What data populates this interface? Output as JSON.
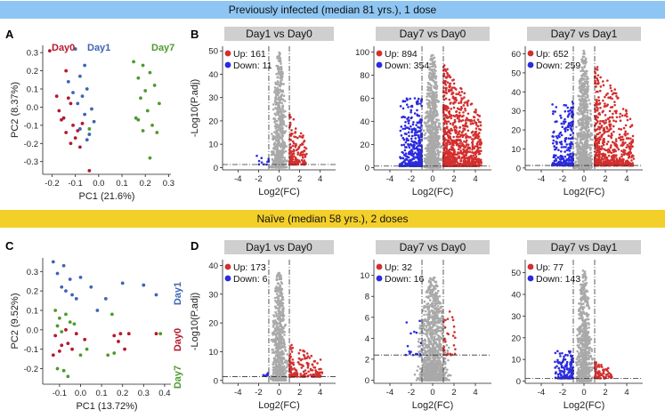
{
  "colors": {
    "day0": "#b5192d",
    "day1": "#3f64b4",
    "day7": "#4e9a2e",
    "up": "#d32f2f",
    "down": "#2a2ae0",
    "ns": "#a9a9a9",
    "header": "#cfcfcf"
  },
  "banners": {
    "top": "Previously infected (median 81 yrs.), 1 dose",
    "bottom": "Naïve (median 58 yrs.), 2 doses"
  },
  "panel_letters": {
    "A": "A",
    "B": "B",
    "C": "C",
    "D": "D"
  },
  "chart_data": [
    {
      "id": "A",
      "type": "scatter",
      "xlabel": "PC1 (21.6%)",
      "ylabel": "PC2 (8.37%)",
      "xlim": [
        -0.24,
        0.31
      ],
      "ylim": [
        -0.37,
        0.34
      ],
      "xticks": [
        -0.2,
        -0.1,
        0.0,
        0.1,
        0.2,
        0.3
      ],
      "xticklabels": [
        "-0.2",
        "-0.1",
        "0.0",
        "0.1",
        "0.2",
        "0.3"
      ],
      "yticks": [
        -0.3,
        -0.2,
        -0.1,
        0.0,
        0.1,
        0.2,
        0.3
      ],
      "yticklabels": [
        "-0.3",
        "-0.2",
        "-0.1",
        "0.0",
        "0.1",
        "0.2",
        "0.3"
      ],
      "group_labels": [
        {
          "text": "Day0",
          "color_key": "day0"
        },
        {
          "text": "Day1",
          "color_key": "day1"
        },
        {
          "text": "Day7",
          "color_key": "day7"
        }
      ],
      "series": [
        {
          "name": "Day0",
          "color_key": "day0",
          "x": [
            -0.21,
            -0.14,
            -0.18,
            -0.13,
            -0.12,
            -0.17,
            -0.15,
            -0.11,
            -0.09,
            -0.1,
            -0.14,
            -0.12,
            -0.08,
            -0.16,
            -0.07,
            -0.04
          ],
          "y": [
            0.31,
            0.2,
            0.06,
            0.05,
            0.02,
            -0.02,
            -0.06,
            -0.1,
            -0.13,
            -0.17,
            -0.14,
            -0.2,
            -0.22,
            -0.07,
            -0.09,
            -0.35
          ]
        },
        {
          "name": "Day1",
          "color_key": "day1",
          "x": [
            -0.1,
            -0.06,
            -0.13,
            -0.08,
            -0.11,
            -0.07,
            -0.05,
            -0.09,
            -0.03,
            -0.06,
            -0.02,
            -0.08,
            -0.04,
            -0.05
          ],
          "y": [
            0.32,
            0.23,
            0.14,
            0.17,
            0.08,
            0.06,
            0.1,
            0.02,
            -0.01,
            -0.04,
            -0.08,
            -0.12,
            -0.15,
            -0.18
          ]
        },
        {
          "name": "Day7",
          "color_key": "day7",
          "x": [
            0.15,
            0.19,
            0.22,
            0.17,
            0.24,
            0.2,
            0.18,
            0.26,
            0.21,
            0.16,
            0.23,
            0.19,
            0.25,
            0.22,
            0.17,
            -0.04
          ],
          "y": [
            0.25,
            0.23,
            0.19,
            0.16,
            0.12,
            0.09,
            0.05,
            0.02,
            -0.02,
            -0.06,
            -0.1,
            -0.13,
            -0.14,
            -0.28,
            -0.07,
            -0.12
          ]
        }
      ]
    },
    {
      "id": "B1",
      "type": "scatter",
      "title": "Day1 vs Day0",
      "xlabel": "Log2(FC)",
      "ylabel": "-Log10(P.adj)",
      "xlim": [
        -5.5,
        5.5
      ],
      "ylim": [
        -1,
        52
      ],
      "xticks": [
        -4,
        -2,
        0,
        2,
        4
      ],
      "yticks": [
        0,
        10,
        20,
        30,
        40,
        50
      ],
      "threshold_x": [
        -1,
        1
      ],
      "threshold_y": 1.3,
      "legend": [
        {
          "label": "Up: 161",
          "color_key": "up"
        },
        {
          "label": "Down: 11",
          "color_key": "down"
        }
      ],
      "counts": {
        "up": 161,
        "down": 11,
        "ns": 600
      },
      "spread": {
        "ns_x": 0.6,
        "up_x": [
          1,
          2.6
        ],
        "down_x": [
          -1,
          -2.2
        ],
        "ns_max_y": 50,
        "up_max_y": 25,
        "down_max_y": 6
      }
    },
    {
      "id": "B2",
      "type": "scatter",
      "title": "Day7 vs Day0",
      "xlabel": "Log2(FC)",
      "ylabel": "",
      "xlim": [
        -5.5,
        5.5
      ],
      "ylim": [
        -2,
        105
      ],
      "xticks": [
        -4,
        -2,
        0,
        2,
        4
      ],
      "yticks": [
        0,
        20,
        40,
        60,
        80,
        100
      ],
      "threshold_x": [
        -1,
        1
      ],
      "threshold_y": 1.3,
      "legend": [
        {
          "label": "Up: 894",
          "color_key": "up"
        },
        {
          "label": "Down: 354",
          "color_key": "down"
        }
      ],
      "counts": {
        "up": 894,
        "down": 354,
        "ns": 900
      },
      "spread": {
        "ns_x": 0.6,
        "up_x": [
          1,
          4.5
        ],
        "down_x": [
          -1,
          -3
        ],
        "ns_max_y": 100,
        "up_max_y": 90,
        "down_max_y": 60
      }
    },
    {
      "id": "B3",
      "type": "scatter",
      "title": "Day7 vs Day1",
      "xlabel": "Log2(FC)",
      "ylabel": "",
      "xlim": [
        -5.5,
        5.5
      ],
      "ylim": [
        -1,
        64
      ],
      "xticks": [
        -4,
        -2,
        0,
        2,
        4
      ],
      "yticks": [
        0,
        10,
        20,
        30,
        40,
        50,
        60
      ],
      "threshold_x": [
        -1,
        1
      ],
      "threshold_y": 1.3,
      "legend": [
        {
          "label": "Up: 652",
          "color_key": "up"
        },
        {
          "label": "Down: 259",
          "color_key": "down"
        }
      ],
      "counts": {
        "up": 652,
        "down": 259,
        "ns": 800
      },
      "spread": {
        "ns_x": 0.6,
        "up_x": [
          1,
          4.6
        ],
        "down_x": [
          -1,
          -3
        ],
        "ns_max_y": 62,
        "up_max_y": 55,
        "down_max_y": 35
      }
    },
    {
      "id": "C",
      "type": "scatter",
      "xlabel": "PC1 (13.72%)",
      "ylabel": "PC2 (9.52%)",
      "xlim": [
        -0.18,
        0.43
      ],
      "ylim": [
        -0.28,
        0.37
      ],
      "xticks": [
        -0.1,
        0.0,
        0.1,
        0.2,
        0.3,
        0.4
      ],
      "xticklabels": [
        "-0.1",
        "0.0",
        "0.1",
        "0.2",
        "0.3",
        "0.4"
      ],
      "yticks": [
        -0.2,
        -0.1,
        0.0,
        0.1,
        0.2,
        0.3
      ],
      "yticklabels": [
        "-0.2",
        "-0.1",
        "0.0",
        "0.1",
        "0.2",
        "0.3"
      ],
      "group_labels": [
        {
          "text": "Day1",
          "color_key": "day1"
        },
        {
          "text": "Day0",
          "color_key": "day0"
        },
        {
          "text": "Day7",
          "color_key": "day7"
        }
      ],
      "series": [
        {
          "name": "Day0",
          "color_key": "day0",
          "x": [
            -0.12,
            -0.09,
            -0.06,
            -0.1,
            -0.04,
            -0.13,
            -0.07,
            -0.02,
            0.02,
            0.16,
            0.19,
            0.21,
            0.23,
            0.18,
            0.36
          ],
          "y": [
            -0.03,
            -0.08,
            -0.07,
            -0.11,
            -0.1,
            -0.13,
            0.0,
            -0.02,
            -0.05,
            -0.03,
            -0.02,
            -0.1,
            -0.02,
            -0.06,
            -0.02
          ]
        },
        {
          "name": "Day1",
          "color_key": "day1",
          "x": [
            -0.13,
            -0.11,
            -0.08,
            -0.05,
            -0.09,
            -0.07,
            -0.04,
            0.0,
            -0.02,
            0.05,
            0.12,
            0.2,
            0.3,
            0.08,
            0.36
          ],
          "y": [
            0.35,
            0.29,
            0.33,
            0.26,
            0.22,
            0.2,
            0.18,
            0.27,
            0.16,
            0.22,
            0.16,
            0.24,
            0.23,
            0.1,
            0.18
          ]
        },
        {
          "name": "Day7",
          "color_key": "day7",
          "x": [
            -0.12,
            -0.1,
            -0.07,
            -0.11,
            -0.05,
            -0.09,
            -0.03,
            0.0,
            -0.08,
            0.03,
            0.13,
            0.16,
            0.15,
            0.38,
            -0.11,
            -0.06
          ],
          "y": [
            0.1,
            0.06,
            0.08,
            0.02,
            0.04,
            -0.01,
            0.03,
            -0.13,
            -0.21,
            -0.1,
            -0.13,
            -0.12,
            0.08,
            -0.02,
            -0.2,
            -0.24
          ]
        }
      ]
    },
    {
      "id": "D1",
      "type": "scatter",
      "title": "Day1 vs Day0",
      "xlabel": "Log2(FC)",
      "ylabel": "-Log10(P.adj)",
      "xlim": [
        -5.5,
        5.5
      ],
      "ylim": [
        -1,
        42
      ],
      "xticks": [
        -4,
        -2,
        0,
        2,
        4
      ],
      "yticks": [
        0,
        10,
        20,
        30,
        40
      ],
      "threshold_x": [
        -1,
        1
      ],
      "threshold_y": 1.3,
      "legend": [
        {
          "label": "Up: 173",
          "color_key": "up"
        },
        {
          "label": "Down: 6",
          "color_key": "down"
        }
      ],
      "counts": {
        "up": 173,
        "down": 6,
        "ns": 650
      },
      "spread": {
        "ns_x": 0.6,
        "up_x": [
          1,
          4.2
        ],
        "down_x": [
          -1,
          -1.6
        ],
        "ns_max_y": 39,
        "up_max_y": 13,
        "down_max_y": 3
      }
    },
    {
      "id": "D2",
      "type": "scatter",
      "title": "Day7 vs Day0",
      "xlabel": "Log2(FC)",
      "ylabel": "",
      "xlim": [
        -5.5,
        5.5
      ],
      "ylim": [
        -0.3,
        11.5
      ],
      "xticks": [
        -4,
        -2,
        0,
        2,
        4
      ],
      "yticks": [
        0,
        2,
        4,
        6,
        8,
        10
      ],
      "threshold_x": [
        -1,
        1
      ],
      "threshold_y": 2.4,
      "legend": [
        {
          "label": "Up: 32",
          "color_key": "up"
        },
        {
          "label": "Down: 16",
          "color_key": "down"
        }
      ],
      "counts": {
        "up": 32,
        "down": 16,
        "ns": 1200
      },
      "spread": {
        "ns_x": 1.1,
        "up_x": [
          1,
          2.3
        ],
        "down_x": [
          -1,
          -2.5
        ],
        "ns_max_y": 10,
        "up_max_y": 8,
        "down_max_y": 6
      }
    },
    {
      "id": "D3",
      "type": "scatter",
      "title": "Day7 vs Day1",
      "xlabel": "Log2(FC)",
      "ylabel": "",
      "xlim": [
        -5.5,
        5.5
      ],
      "ylim": [
        -1,
        56
      ],
      "xticks": [
        -4,
        -2,
        0,
        2,
        4
      ],
      "yticks": [
        0,
        10,
        20,
        30,
        40,
        50
      ],
      "threshold_x": [
        -1,
        1
      ],
      "threshold_y": 1.3,
      "legend": [
        {
          "label": "Up: 77",
          "color_key": "up"
        },
        {
          "label": "Down: 143",
          "color_key": "down"
        }
      ],
      "counts": {
        "up": 77,
        "down": 143,
        "ns": 700
      },
      "spread": {
        "ns_x": 0.6,
        "up_x": [
          1,
          2.6
        ],
        "down_x": [
          -1,
          -2.8
        ],
        "ns_max_y": 52,
        "up_max_y": 9,
        "down_max_y": 14
      }
    }
  ]
}
